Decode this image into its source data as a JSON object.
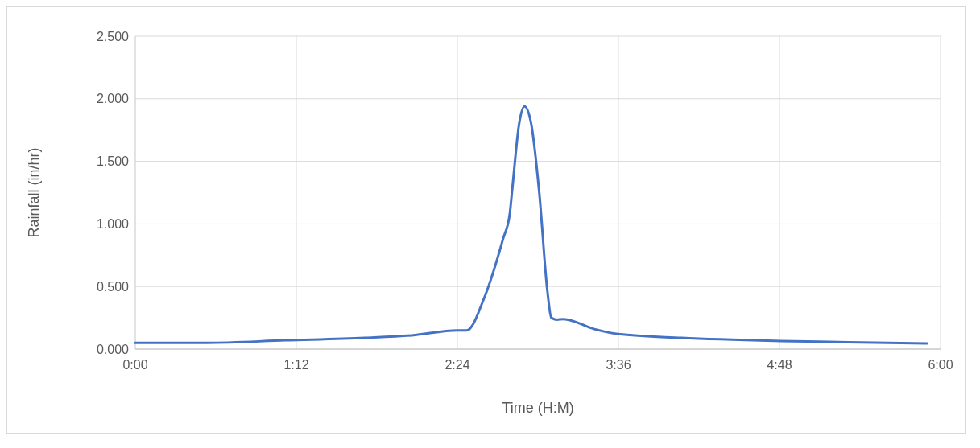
{
  "chart_data": {
    "type": "line",
    "xlabel": "Time (H:M)",
    "ylabel": "Rainfall (in/hr)",
    "xlim": [
      0,
      6
    ],
    "xticks": [
      {
        "value": 0,
        "label": "0:00"
      },
      {
        "value": 1.2,
        "label": "1:12"
      },
      {
        "value": 2.4,
        "label": "2:24"
      },
      {
        "value": 3.6,
        "label": "3:36"
      },
      {
        "value": 4.8,
        "label": "4:48"
      },
      {
        "value": 6,
        "label": "6:00"
      }
    ],
    "ylim": [
      0,
      2.5
    ],
    "yticks": [
      {
        "value": 0,
        "label": "0.000"
      },
      {
        "value": 0.5,
        "label": "0.500"
      },
      {
        "value": 1,
        "label": "1.000"
      },
      {
        "value": 1.5,
        "label": "1.500"
      },
      {
        "value": 2,
        "label": "2.000"
      },
      {
        "value": 2.5,
        "label": "2.500"
      }
    ],
    "grid": true,
    "line_style": "solid",
    "marker": "none",
    "series": [
      {
        "color": "#4472c4",
        "x": [
          0,
          0.53,
          1.12,
          1.71,
          2.06,
          2.4,
          2.47,
          2.6,
          2.74,
          2.79,
          2.81,
          2.86,
          2.9,
          2.95,
          3.01,
          3.07,
          3.1,
          3.14,
          3.19,
          3.42,
          3.6,
          4.07,
          4.81,
          5.31,
          5.9
        ],
        "values": [
          0.05,
          0.05,
          0.07,
          0.09,
          0.11,
          0.15,
          0.15,
          0.41,
          0.88,
          1.08,
          1.29,
          1.8,
          1.94,
          1.8,
          1.25,
          0.47,
          0.25,
          0.235,
          0.24,
          0.16,
          0.12,
          0.09,
          0.065,
          0.055,
          0.045
        ]
      }
    ]
  }
}
